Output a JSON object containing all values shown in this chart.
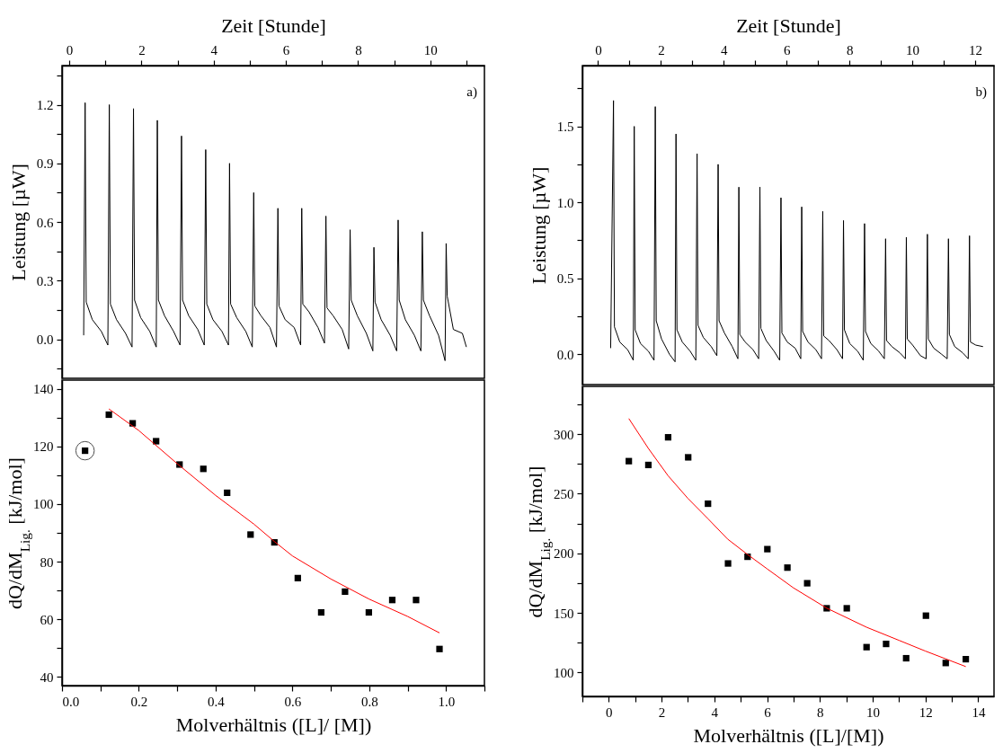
{
  "chart_data": [
    {
      "type": "line",
      "xlabel": "Zeit [Stunde]",
      "ylabel": "Leistung [µW]",
      "annotations": [
        "a)"
      ],
      "xlim": [
        -0.2,
        11.5
      ],
      "xticks": [
        0,
        {
          "value": 1,
          "label": null
        },
        2,
        {
          "value": 3,
          "label": null
        },
        4,
        {
          "value": 5,
          "label": null
        },
        6,
        {
          "value": 7,
          "label": null
        },
        8,
        {
          "value": 9,
          "label": null
        },
        10,
        {
          "value": 11,
          "label": null
        }
      ],
      "ylim": [
        -0.2,
        1.4
      ],
      "yticks": [
        {
          "value": -0.15,
          "label": null
        },
        {
          "value": 0,
          "label": "0.0"
        },
        {
          "value": 0.15,
          "label": null
        },
        0.3,
        {
          "value": 0.45,
          "label": null
        },
        0.6,
        {
          "value": 0.75,
          "label": null
        },
        0.9,
        {
          "value": 1.05,
          "label": null
        },
        1.2,
        {
          "value": 1.35,
          "label": null
        }
      ],
      "series": [
        {
          "color": "#000000",
          "x": [
            0.4,
            0.44,
            0.47,
            0.64,
            0.89,
            1.07,
            1.11,
            1.14,
            1.31,
            1.56,
            1.74,
            1.78,
            1.81,
            1.98,
            2.23,
            2.41,
            2.44,
            2.47,
            2.64,
            2.89,
            3.07,
            3.11,
            3.14,
            3.31,
            3.56,
            3.74,
            3.78,
            3.81,
            3.98,
            4.23,
            4.41,
            4.44,
            4.47,
            4.64,
            4.89,
            5.07,
            5.11,
            5.14,
            5.31,
            5.56,
            5.74,
            5.78,
            5.81,
            5.98,
            6.23,
            6.41,
            6.44,
            6.47,
            6.64,
            6.89,
            7.07,
            7.11,
            7.14,
            7.31,
            7.56,
            7.74,
            7.78,
            7.81,
            7.98,
            8.23,
            8.41,
            8.44,
            8.47,
            8.64,
            8.89,
            9.07,
            9.11,
            9.14,
            9.31,
            9.56,
            9.74,
            9.78,
            9.81,
            9.98,
            10.23,
            10.41,
            10.44,
            10.47,
            10.64,
            10.89,
            11.0
          ],
          "values": [
            0.02,
            1.21,
            0.19,
            0.1,
            0.04,
            -0.03,
            1.2,
            0.18,
            0.1,
            0.03,
            -0.04,
            1.18,
            0.2,
            0.11,
            0.04,
            -0.04,
            1.12,
            0.2,
            0.12,
            0.04,
            -0.03,
            1.04,
            0.2,
            0.12,
            0.05,
            -0.03,
            0.97,
            0.18,
            0.1,
            0.04,
            -0.03,
            0.9,
            0.18,
            0.11,
            0.04,
            -0.04,
            0.75,
            0.17,
            0.12,
            0.06,
            -0.04,
            0.67,
            0.17,
            0.1,
            0.06,
            -0.03,
            0.67,
            0.18,
            0.14,
            0.06,
            -0.02,
            0.63,
            0.16,
            0.12,
            0.05,
            -0.05,
            0.56,
            0.2,
            0.12,
            0.03,
            -0.06,
            0.47,
            0.19,
            0.1,
            0.02,
            -0.06,
            0.61,
            0.2,
            0.1,
            0.02,
            -0.06,
            0.55,
            0.2,
            0.12,
            0.02,
            -0.11,
            0.49,
            0.22,
            0.05,
            0.03,
            -0.04
          ]
        }
      ]
    },
    {
      "type": "line",
      "xlabel": "Zeit [Stunde]",
      "ylabel": "Leistung [µW]",
      "annotations": [
        "b)"
      ],
      "xlim": [
        -0.5,
        12.6
      ],
      "xticks": [
        0,
        {
          "value": 1,
          "label": null
        },
        2,
        {
          "value": 3,
          "label": null
        },
        4,
        {
          "value": 5,
          "label": null
        },
        6,
        {
          "value": 7,
          "label": null
        },
        8,
        {
          "value": 9,
          "label": null
        },
        10,
        {
          "value": 11,
          "label": null
        },
        12
      ],
      "ylim": [
        -0.2,
        1.9
      ],
      "yticks": [
        {
          "value": 0,
          "label": "0.0"
        },
        {
          "value": 0.25,
          "label": null
        },
        0.5,
        {
          "value": 0.75,
          "label": null
        },
        {
          "value": 1,
          "label": "1.0"
        },
        {
          "value": 1.25,
          "label": null
        },
        1.5,
        {
          "value": 1.75,
          "label": null
        }
      ],
      "series": [
        {
          "color": "#000000",
          "x": [
            0.4,
            0.49,
            0.52,
            0.69,
            0.94,
            1.12,
            1.15,
            1.18,
            1.35,
            1.6,
            1.78,
            1.82,
            1.85,
            2.02,
            2.27,
            2.45,
            2.48,
            2.51,
            2.68,
            2.93,
            3.11,
            3.15,
            3.18,
            3.35,
            3.6,
            3.78,
            3.82,
            3.85,
            4.02,
            4.27,
            4.45,
            4.48,
            4.51,
            4.68,
            4.93,
            5.11,
            5.15,
            5.18,
            5.35,
            5.6,
            5.78,
            5.82,
            5.85,
            6.02,
            6.27,
            6.45,
            6.48,
            6.51,
            6.68,
            6.93,
            7.11,
            7.15,
            7.18,
            7.35,
            7.6,
            7.78,
            7.81,
            7.84,
            8.01,
            8.26,
            8.44,
            8.48,
            8.51,
            8.68,
            8.93,
            9.11,
            9.15,
            9.18,
            9.35,
            9.6,
            9.78,
            9.81,
            9.84,
            10.01,
            10.26,
            10.44,
            10.48,
            10.51,
            10.68,
            10.93,
            11.11,
            11.15,
            11.18,
            11.35,
            11.6,
            11.78,
            11.82,
            11.85,
            12.02,
            12.25
          ],
          "values": [
            0.04,
            1.67,
            0.18,
            0.08,
            0.03,
            -0.04,
            1.5,
            0.16,
            0.07,
            0.02,
            -0.04,
            1.63,
            0.22,
            0.1,
            0.0,
            -0.05,
            1.45,
            0.16,
            0.08,
            0.02,
            -0.04,
            1.32,
            0.19,
            0.11,
            0.05,
            -0.01,
            1.25,
            0.22,
            0.14,
            0.05,
            -0.03,
            1.1,
            0.13,
            0.08,
            0.03,
            -0.03,
            1.1,
            0.17,
            0.09,
            0.02,
            -0.04,
            1.03,
            0.14,
            0.08,
            0.04,
            -0.03,
            0.97,
            0.15,
            0.08,
            0.03,
            -0.03,
            0.94,
            0.12,
            0.09,
            0.03,
            -0.03,
            0.88,
            0.16,
            0.07,
            0.02,
            -0.04,
            0.86,
            0.15,
            0.07,
            0.02,
            -0.03,
            0.76,
            0.09,
            0.05,
            0.01,
            -0.03,
            0.77,
            0.1,
            0.06,
            -0.01,
            -0.03,
            0.79,
            0.1,
            0.04,
            0.0,
            -0.03,
            0.76,
            0.13,
            0.05,
            0.01,
            -0.03,
            0.78,
            0.08,
            0.06,
            0.05
          ]
        }
      ]
    },
    {
      "type": "scatter",
      "xlabel": "Molverhältnis ([L]/ [M])",
      "ylabel": "dQ/dM$_{Lig.}$ [kJ/mol]",
      "xlim": [
        0,
        1.1
      ],
      "xticks": [
        {
          "value": 0,
          "label": "0.0"
        },
        {
          "value": 0.1,
          "label": null
        },
        0.2,
        {
          "value": 0.3,
          "label": null
        },
        0.4,
        {
          "value": 0.5,
          "label": null
        },
        0.6,
        {
          "value": 0.7,
          "label": null
        },
        0.8,
        {
          "value": 0.9,
          "label": null
        },
        {
          "value": 1,
          "label": "1.0"
        },
        {
          "value": 1.1,
          "label": null
        }
      ],
      "ylim": [
        37,
        143
      ],
      "yticks": [
        40,
        {
          "value": 50,
          "label": null
        },
        60,
        {
          "value": 70,
          "label": null
        },
        80,
        {
          "value": 90,
          "label": null
        },
        100,
        {
          "value": 110,
          "label": null
        },
        120,
        {
          "value": 130,
          "label": null
        },
        140
      ],
      "series": [
        {
          "marker": "square",
          "color": "#000000",
          "x": [
            0.06,
            0.122,
            0.184,
            0.245,
            0.306,
            0.368,
            0.43,
            0.491,
            0.553,
            0.614,
            0.675,
            0.737,
            0.799,
            0.86,
            0.922,
            0.983
          ],
          "values": [
            118.5,
            131,
            128,
            121.8,
            113.7,
            112.2,
            103.9,
            89.4,
            86.7,
            74.3,
            62.4,
            69.6,
            62.4,
            66.7,
            66.7,
            49.7
          ]
        },
        {
          "type": "line",
          "color": "#ff0000",
          "x": [
            0.122,
            0.2,
            0.3,
            0.4,
            0.5,
            0.553,
            0.6,
            0.7,
            0.8,
            0.9,
            0.983
          ],
          "values": [
            133,
            125.5,
            114,
            103,
            93,
            87,
            82,
            74,
            67,
            61,
            55.3
          ]
        }
      ]
    },
    {
      "type": "scatter",
      "xlabel": "Molverhältnis ([L]/[M])",
      "ylabel": "dQ/dM$_{Lig.}$ [kJ/mol]",
      "xlim": [
        -1,
        14.6
      ],
      "xticks": [
        {
          "value": -1,
          "label": null
        },
        0,
        {
          "value": 1,
          "label": null
        },
        2,
        {
          "value": 3,
          "label": null
        },
        4,
        {
          "value": 5,
          "label": null
        },
        6,
        {
          "value": 7,
          "label": null
        },
        8,
        {
          "value": 9,
          "label": null
        },
        10,
        {
          "value": 11,
          "label": null
        },
        12,
        {
          "value": 13,
          "label": null
        },
        14
      ],
      "ylim": [
        80,
        340
      ],
      "yticks": [
        100,
        {
          "value": 125,
          "label": null
        },
        150,
        {
          "value": 175,
          "label": null
        },
        200,
        {
          "value": 225,
          "label": null
        },
        250,
        {
          "value": 275,
          "label": null
        },
        300,
        {
          "value": 325,
          "label": null
        }
      ],
      "series": [
        {
          "marker": "square",
          "color": "#000000",
          "x": [
            0.76,
            1.5,
            2.25,
            3.01,
            3.76,
            4.52,
            5.26,
            6.01,
            6.77,
            7.52,
            8.26,
            9.02,
            9.77,
            10.51,
            11.27,
            12.02,
            12.77,
            13.53
          ],
          "values": [
            277.3,
            274.1,
            297.3,
            280.5,
            241.6,
            191.5,
            197.1,
            203.5,
            188,
            174.9,
            153.9,
            153.9,
            121.3,
            124,
            112,
            147.7,
            108,
            111.2
          ]
        },
        {
          "type": "line",
          "color": "#ff0000",
          "x": [
            0.76,
            1.5,
            2.25,
            3,
            3.76,
            4.5,
            5.26,
            6,
            7,
            8.26,
            9.77,
            11,
            12,
            13.53
          ],
          "values": [
            313,
            288,
            265,
            246,
            229,
            212,
            199,
            187,
            171,
            154,
            138,
            127,
            118,
            105
          ]
        }
      ]
    }
  ]
}
